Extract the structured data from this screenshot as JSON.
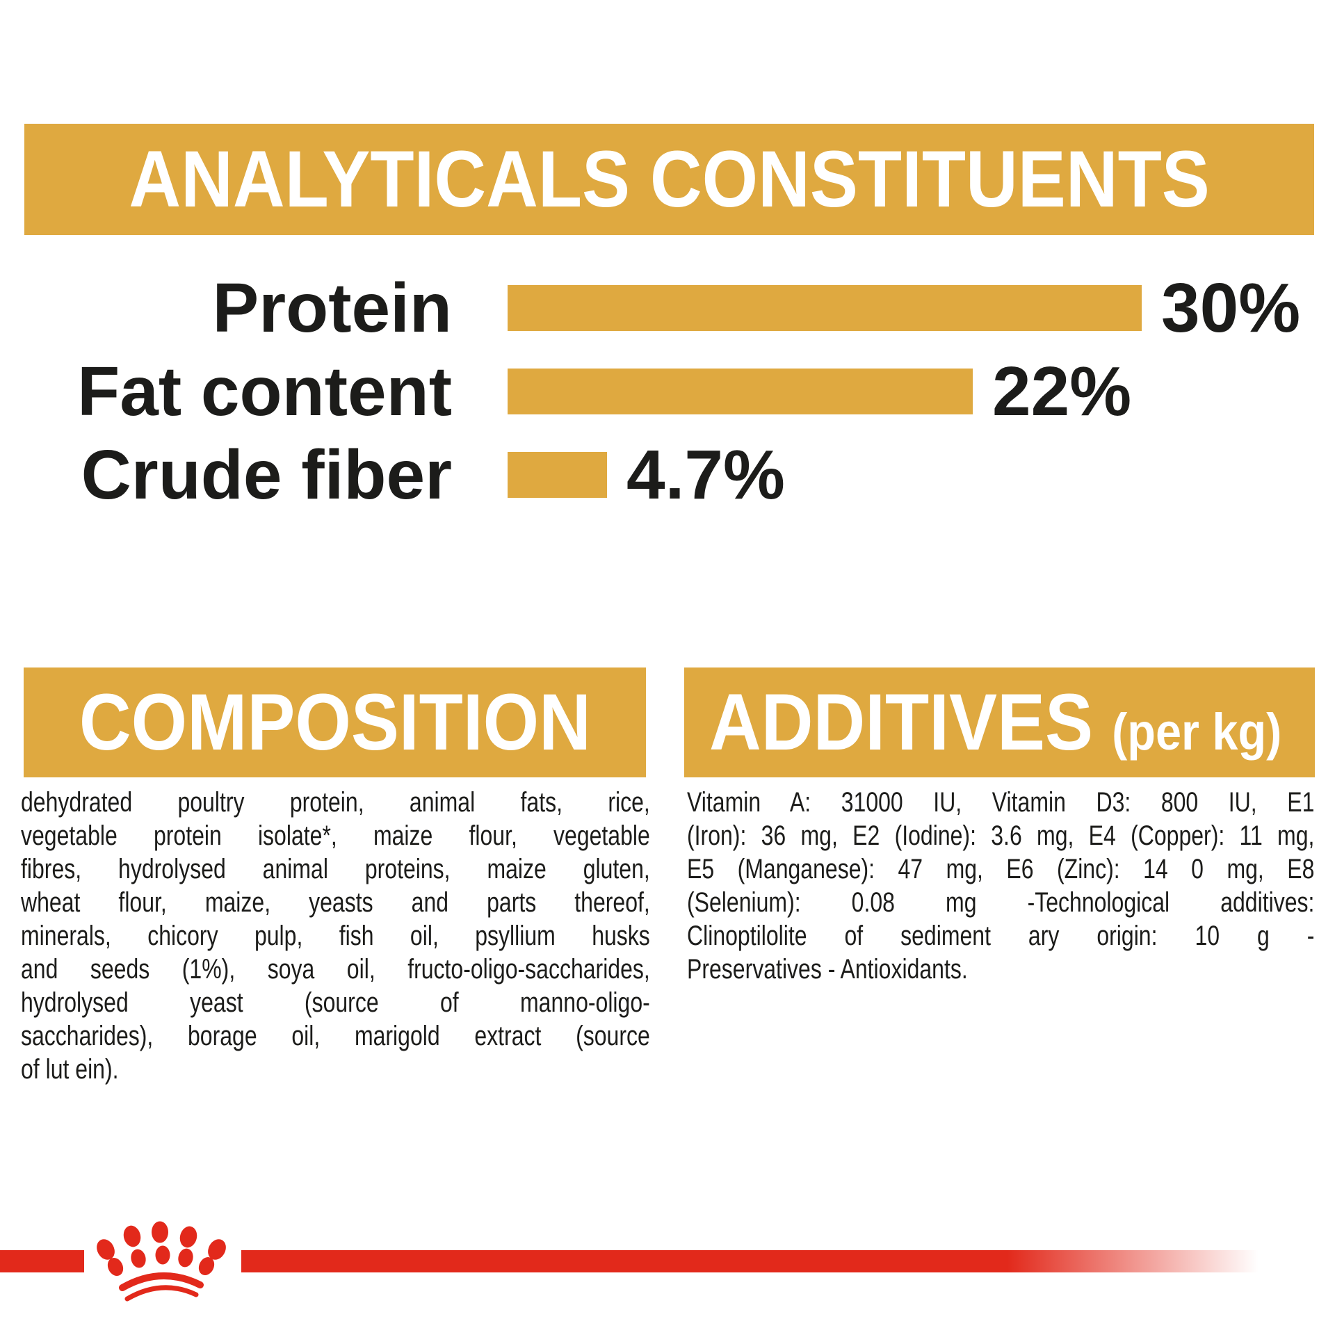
{
  "colors": {
    "gold": "#DFA940",
    "red": "#E2291B",
    "heading_text": "#FFFFFF",
    "body_text": "#1C1C1A",
    "background": "#FFFFFF"
  },
  "chart_data": {
    "type": "bar",
    "orientation": "horizontal",
    "title": "ANALYTICALS CONSTITUENTS",
    "categories": [
      "Protein",
      "Fat content",
      "Crude fiber"
    ],
    "values": [
      30,
      22,
      4.7
    ],
    "value_labels": [
      "30%",
      "22%",
      "4.7%"
    ],
    "xlim": [
      0,
      37.5
    ],
    "grid": false,
    "legend": false,
    "bar_color": "#DFA940",
    "value_position": "right-of-bar"
  },
  "composition": {
    "heading": "COMPOSITION",
    "lines": [
      "dehydrated poultry protein, animal fats, rice,",
      "vegetable protein isolate*, maize flour, vegetable",
      "fibres, hydrolysed animal proteins, maize gluten,",
      "wheat flour, maize, yeasts and parts thereof,",
      "minerals, chicory pulp, fish oil, psyllium husks",
      "and seeds (1%), soya oil, fructo-oligo-saccharides,",
      "hydrolysed yeast (source of manno-oligo-",
      "saccharides), borage oil, marigold extract (source",
      "of lut ein)."
    ]
  },
  "additives": {
    "heading": "ADDITIVES",
    "heading_suffix": "(per kg)",
    "lines": [
      "Vitamin A: 31000 IU, Vitamin D3: 800 IU, E1",
      "(Iron): 36 mg, E2 (Iodine): 3.6 mg, E4 (Copper): 11 mg,",
      "E5 (Manganese): 47 mg, E6 (Zinc): 14 0 mg, E8",
      "(Selenium): 0.08 mg -Technological additives:",
      "Clinoptilolite of sediment ary origin: 10 g -",
      "Preservatives - Antioxidants."
    ]
  },
  "footer": {
    "logo": "royal-canin-crown"
  }
}
